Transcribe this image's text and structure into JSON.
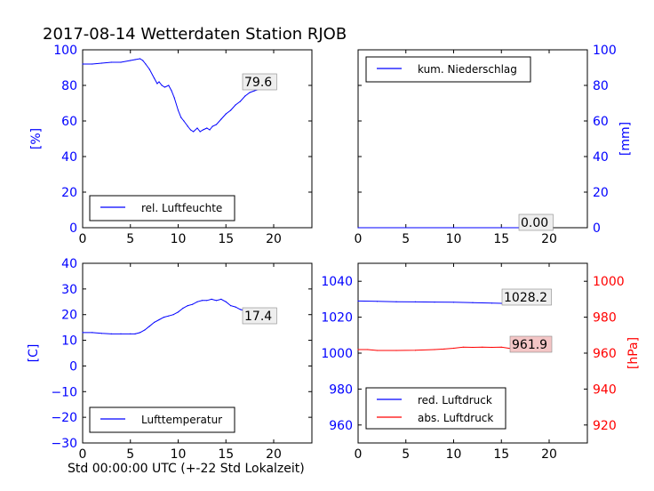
{
  "title": "2017-08-14 Wetterdaten Station RJOB",
  "xlabel": "Std 00:00:00 UTC (+-22 Std Lokalzeit)",
  "colors": {
    "blue": "#0000ff",
    "red": "#ff0000",
    "axis": "#000000",
    "annot_box": "#eeeeee",
    "annot_box_red": "#f4c6c6"
  },
  "chart_data": [
    {
      "type": "line",
      "ylabel": "[%]",
      "xlim": [
        0,
        24
      ],
      "ylim": [
        0,
        100
      ],
      "xticks": [
        "0",
        "5",
        "10",
        "15",
        "20"
      ],
      "yticks": [
        "0",
        "20",
        "40",
        "60",
        "80",
        "100"
      ],
      "legend": "rel. Luftfeuchte",
      "legend_position": "lower-left",
      "annotation": "79.6",
      "series": [
        {
          "name": "rel. Luftfeuchte",
          "x": [
            0,
            1,
            2,
            3,
            4,
            5,
            5.5,
            6,
            6.3,
            6.6,
            7,
            7.5,
            7.8,
            8,
            8.3,
            8.6,
            9,
            9.3,
            9.6,
            10,
            10.3,
            10.6,
            11,
            11.3,
            11.6,
            12,
            12.3,
            12.6,
            13,
            13.3,
            13.6,
            14,
            14.5,
            15,
            15.5,
            16,
            16.5,
            17,
            17.5,
            18,
            18.5,
            19,
            19.5,
            20
          ],
          "values": [
            92,
            92,
            92.5,
            93,
            93,
            94,
            94.5,
            95,
            94,
            92,
            89,
            84,
            81,
            82,
            80,
            79,
            80,
            77,
            73,
            66,
            62,
            60,
            57,
            55,
            54,
            56,
            54,
            55,
            56,
            55,
            57,
            58,
            61,
            64,
            66,
            69,
            71,
            74,
            76,
            77,
            78,
            79,
            79,
            79.6
          ]
        }
      ]
    },
    {
      "type": "line",
      "ylabel": "[mm]",
      "xlim": [
        0,
        24
      ],
      "ylim": [
        0,
        100
      ],
      "xticks": [
        "0",
        "5",
        "10",
        "15",
        "20"
      ],
      "yticks": [
        "0",
        "20",
        "40",
        "60",
        "80",
        "100"
      ],
      "legend": "kum. Niederschlag",
      "legend_position": "upper-left",
      "annotation": "0.00",
      "series": [
        {
          "name": "kum. Niederschlag",
          "x": [
            0,
            20
          ],
          "values": [
            0,
            0
          ]
        }
      ]
    },
    {
      "type": "line",
      "ylabel": "[C]",
      "xlim": [
        0,
        24
      ],
      "ylim": [
        -30,
        40
      ],
      "xticks": [
        "0",
        "5",
        "10",
        "15",
        "20"
      ],
      "yticks": [
        "−30",
        "−20",
        "−10",
        "0",
        "10",
        "20",
        "30",
        "40"
      ],
      "legend": "Lufttemperatur",
      "legend_position": "lower-left",
      "annotation": "17.4",
      "series": [
        {
          "name": "Lufttemperatur",
          "x": [
            0,
            1,
            2,
            3,
            4,
            5,
            5.5,
            6,
            6.5,
            7,
            7.5,
            8,
            8.5,
            9,
            9.5,
            10,
            10.5,
            11,
            11.5,
            12,
            12.5,
            13,
            13.5,
            14,
            14.5,
            15,
            15.5,
            16,
            16.5,
            17,
            17.5,
            18,
            18.5,
            19,
            19.5,
            20
          ],
          "values": [
            13,
            13,
            12.7,
            12.5,
            12.5,
            12.5,
            12.5,
            13,
            14,
            15.5,
            17,
            18,
            19,
            19.5,
            20,
            21,
            22.5,
            23.5,
            24,
            25,
            25.5,
            25.5,
            26,
            25.5,
            26,
            25,
            23.5,
            23,
            22,
            21.5,
            21,
            20,
            19.5,
            18.5,
            18,
            17.4
          ]
        }
      ]
    },
    {
      "type": "line",
      "ylabel": "[hPa]",
      "xlim": [
        0,
        24
      ],
      "ylim": [
        950,
        1050
      ],
      "ylim_right": [
        910,
        1010
      ],
      "xticks": [
        "0",
        "5",
        "10",
        "15",
        "20"
      ],
      "yticks": [
        "960",
        "980",
        "1000",
        "1020",
        "1040"
      ],
      "yticks_right": [
        "920",
        "940",
        "960",
        "980",
        "1000"
      ],
      "legend_position": "lower-left",
      "annotations": [
        "1028.2",
        "961.9"
      ],
      "series": [
        {
          "name": "red. Luftdruck",
          "axis": "left",
          "x": [
            0,
            2,
            4,
            6,
            8,
            10,
            12,
            14,
            16,
            18,
            20
          ],
          "values": [
            1029,
            1028.8,
            1028.6,
            1028.5,
            1028.4,
            1028.3,
            1028.1,
            1027.8,
            1027.6,
            1027.7,
            1028.2
          ]
        },
        {
          "name": "abs. Luftdruck",
          "axis": "right",
          "x": [
            0,
            1,
            2,
            4,
            6,
            8,
            9,
            10,
            11,
            12,
            13,
            14,
            15,
            16,
            17,
            18,
            19,
            20
          ],
          "values": [
            962,
            962,
            961.5,
            961.5,
            961.6,
            962,
            962.3,
            962.7,
            963.3,
            963.2,
            963.3,
            963.2,
            963.3,
            962.5,
            962,
            961.8,
            961.9,
            961.9
          ]
        }
      ]
    }
  ]
}
